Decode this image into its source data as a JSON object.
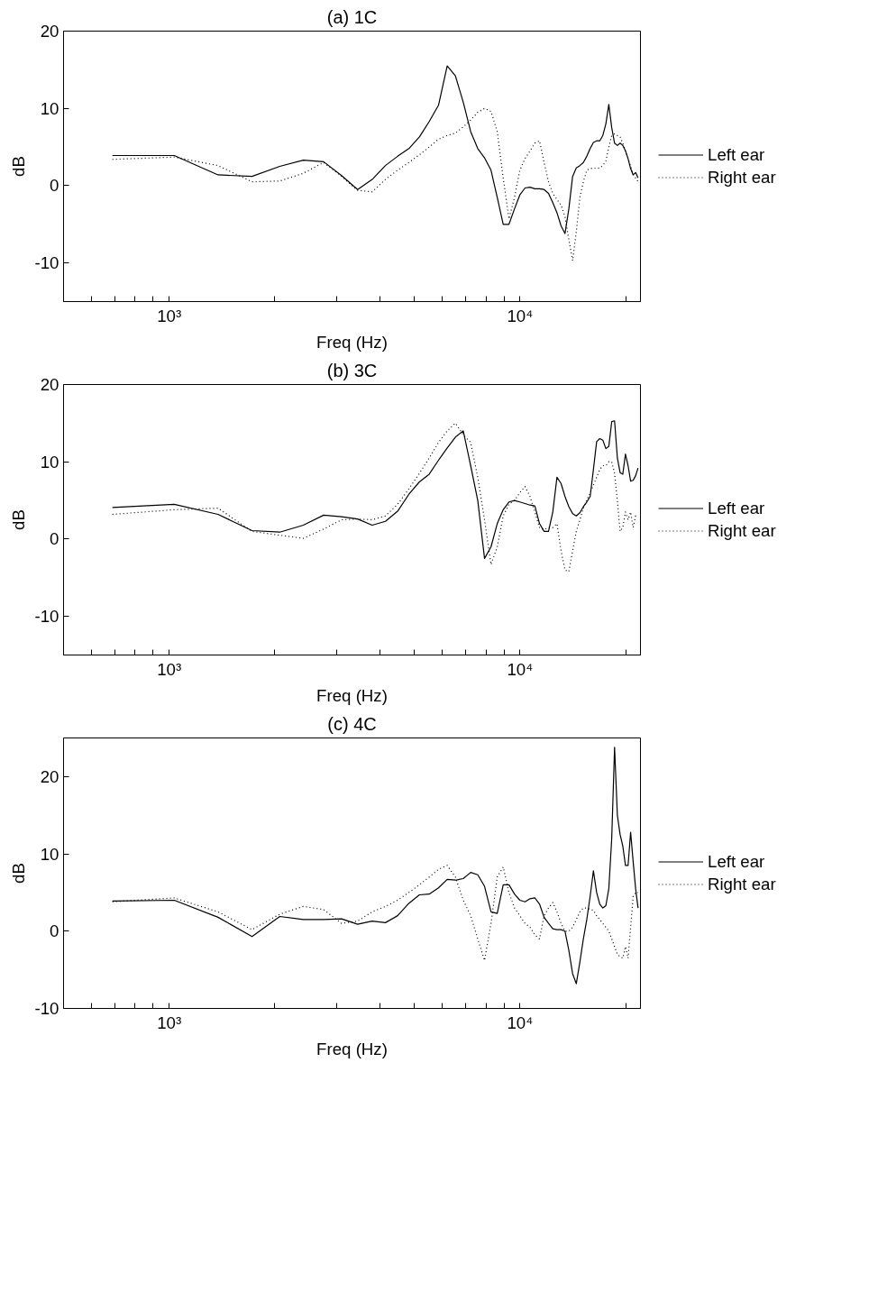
{
  "chart_data": [
    {
      "type": "line",
      "title": "(a) 1C",
      "xlabel": "Freq (Hz)",
      "ylabel": "dB",
      "log": "x",
      "legend": "right",
      "xlim": [
        500,
        22050
      ],
      "ylim": [
        -15,
        20
      ],
      "xticks": [
        {
          "value": 600,
          "label": null
        },
        {
          "value": 700,
          "label": null
        },
        {
          "value": 800,
          "label": null
        },
        {
          "value": 900,
          "label": null
        },
        {
          "value": 1000,
          "label": "10³"
        },
        {
          "value": 2000,
          "label": null
        },
        {
          "value": 3000,
          "label": null
        },
        {
          "value": 4000,
          "label": null
        },
        {
          "value": 5000,
          "label": null
        },
        {
          "value": 6000,
          "label": null
        },
        {
          "value": 7000,
          "label": null
        },
        {
          "value": 8000,
          "label": null
        },
        {
          "value": 9000,
          "label": null
        },
        {
          "value": 10000,
          "label": "10⁴"
        },
        {
          "value": 20000,
          "label": null
        }
      ],
      "yticks": [
        -10,
        0,
        10,
        20
      ],
      "x": [
        689,
        1034,
        1378,
        1723,
        2067,
        2412,
        2756,
        3101,
        3445,
        3790,
        4134,
        4479,
        4823,
        5168,
        5512,
        5857,
        6202,
        6546,
        6891,
        7235,
        7580,
        7924,
        8269,
        8613,
        8958,
        9302,
        9647,
        9991,
        10336,
        10680,
        11025,
        11370,
        11714,
        12059,
        12403,
        12748,
        13092,
        13437,
        13781,
        14126,
        14470,
        14815,
        15159,
        15504,
        15848,
        16193,
        16538,
        16882,
        17227,
        17571,
        17916,
        18260,
        18605,
        18949,
        19294,
        19638,
        19983,
        20327,
        20672,
        21016,
        21361,
        21705
      ],
      "series": [
        {
          "name": "Left ear",
          "color": "#000000",
          "line_style": "solid",
          "values": [
            3.9,
            3.9,
            1.4,
            1.2,
            2.5,
            3.3,
            3.1,
            1.3,
            -0.5,
            0.8,
            2.6,
            3.8,
            4.8,
            6.3,
            8.3,
            10.4,
            15.5,
            14.2,
            10.8,
            7.0,
            4.8,
            3.6,
            2.0,
            -1.5,
            -5.0,
            -5.0,
            -3.0,
            -1.2,
            -0.3,
            -0.2,
            -0.4,
            -0.4,
            -0.5,
            -1.0,
            -2.2,
            -3.5,
            -5.2,
            -6.2,
            -3.0,
            1.2,
            2.3,
            2.6,
            3.0,
            3.8,
            4.8,
            5.6,
            5.8,
            5.8,
            6.5,
            8.0,
            10.5,
            7.5,
            5.5,
            5.2,
            5.5,
            5.2,
            4.5,
            3.5,
            2.2,
            1.4,
            1.7,
            1.0
          ]
        },
        {
          "name": "Right ear",
          "color": "#000000",
          "line_style": "dotted",
          "values": [
            3.4,
            3.7,
            2.6,
            0.5,
            0.6,
            1.6,
            3.0,
            1.2,
            -0.6,
            -0.8,
            0.8,
            2.0,
            3.0,
            4.0,
            5.0,
            6.0,
            6.5,
            6.8,
            7.6,
            8.5,
            9.5,
            10.0,
            9.6,
            7.0,
            1.0,
            -4.3,
            -1.5,
            2.0,
            3.5,
            4.5,
            5.5,
            5.8,
            3.0,
            0.5,
            -1.0,
            -1.8,
            -2.5,
            -4.0,
            -7.0,
            -9.7,
            -6.0,
            -1.5,
            0.5,
            2.0,
            2.2,
            2.3,
            2.2,
            2.3,
            2.6,
            3.2,
            5.0,
            6.5,
            6.7,
            6.5,
            6.3,
            5.5,
            4.5,
            3.5,
            2.5,
            1.5,
            1.0,
            0.5
          ]
        }
      ]
    },
    {
      "type": "line",
      "title": "(b) 3C",
      "xlabel": "Freq (Hz)",
      "ylabel": "dB",
      "log": "x",
      "legend": "right",
      "xlim": [
        500,
        22050
      ],
      "ylim": [
        -15,
        20
      ],
      "xticks": [
        {
          "value": 600,
          "label": null
        },
        {
          "value": 700,
          "label": null
        },
        {
          "value": 800,
          "label": null
        },
        {
          "value": 900,
          "label": null
        },
        {
          "value": 1000,
          "label": "10³"
        },
        {
          "value": 2000,
          "label": null
        },
        {
          "value": 3000,
          "label": null
        },
        {
          "value": 4000,
          "label": null
        },
        {
          "value": 5000,
          "label": null
        },
        {
          "value": 6000,
          "label": null
        },
        {
          "value": 7000,
          "label": null
        },
        {
          "value": 8000,
          "label": null
        },
        {
          "value": 9000,
          "label": null
        },
        {
          "value": 10000,
          "label": "10⁴"
        },
        {
          "value": 20000,
          "label": null
        }
      ],
      "yticks": [
        -10,
        0,
        10,
        20
      ],
      "x": [
        689,
        1034,
        1378,
        1723,
        2067,
        2412,
        2756,
        3101,
        3445,
        3790,
        4134,
        4479,
        4823,
        5168,
        5512,
        5857,
        6202,
        6546,
        6891,
        7235,
        7580,
        7924,
        8269,
        8613,
        8958,
        9302,
        9647,
        9991,
        10336,
        10680,
        11025,
        11370,
        11714,
        12059,
        12403,
        12748,
        13092,
        13437,
        13781,
        14126,
        14470,
        14815,
        15159,
        15504,
        15848,
        16193,
        16538,
        16882,
        17227,
        17571,
        17916,
        18260,
        18605,
        18949,
        19294,
        19638,
        19983,
        20327,
        20672,
        21016,
        21361,
        21705
      ],
      "series": [
        {
          "name": "Left ear",
          "color": "#000000",
          "line_style": "solid",
          "values": [
            4.1,
            4.5,
            3.2,
            1.1,
            0.9,
            1.8,
            3.1,
            2.9,
            2.6,
            1.8,
            2.3,
            3.6,
            5.8,
            7.4,
            8.4,
            10.2,
            11.8,
            13.2,
            14.0,
            9.5,
            5.0,
            -2.5,
            -1.0,
            2.0,
            3.8,
            4.8,
            5.0,
            4.8,
            4.6,
            4.4,
            4.3,
            2.0,
            1.0,
            1.0,
            3.5,
            8.0,
            7.2,
            5.5,
            4.2,
            3.3,
            3.0,
            3.4,
            4.2,
            4.8,
            5.5,
            9.0,
            12.6,
            13.0,
            12.8,
            11.7,
            12.0,
            15.2,
            15.3,
            10.5,
            8.6,
            8.4,
            11.0,
            9.5,
            7.5,
            7.6,
            8.2,
            9.2
          ]
        },
        {
          "name": "Right ear",
          "color": "#000000",
          "line_style": "dotted",
          "values": [
            3.2,
            3.8,
            4.0,
            1.0,
            0.5,
            0.1,
            1.3,
            2.5,
            2.6,
            2.5,
            3.0,
            4.5,
            6.5,
            8.5,
            10.5,
            12.5,
            14.0,
            15.0,
            13.5,
            12.5,
            8.0,
            2.5,
            -3.3,
            -1.0,
            3.0,
            4.5,
            5.0,
            6.0,
            6.8,
            5.5,
            3.5,
            1.5,
            1.2,
            1.5,
            1.5,
            2.0,
            -1.5,
            -4.0,
            -4.2,
            -1.5,
            1.0,
            2.5,
            4.0,
            5.0,
            6.0,
            7.0,
            8.0,
            9.0,
            9.5,
            9.5,
            10.0,
            10.0,
            8.5,
            5.0,
            1.0,
            1.5,
            3.5,
            2.5,
            3.5,
            1.5,
            3.0,
            3.0
          ]
        }
      ]
    },
    {
      "type": "line",
      "title": "(c) 4C",
      "xlabel": "Freq (Hz)",
      "ylabel": "dB",
      "log": "x",
      "legend": "right",
      "xlim": [
        500,
        22050
      ],
      "ylim": [
        -10,
        25
      ],
      "xticks": [
        {
          "value": 600,
          "label": null
        },
        {
          "value": 700,
          "label": null
        },
        {
          "value": 800,
          "label": null
        },
        {
          "value": 900,
          "label": null
        },
        {
          "value": 1000,
          "label": "10³"
        },
        {
          "value": 2000,
          "label": null
        },
        {
          "value": 3000,
          "label": null
        },
        {
          "value": 4000,
          "label": null
        },
        {
          "value": 5000,
          "label": null
        },
        {
          "value": 6000,
          "label": null
        },
        {
          "value": 7000,
          "label": null
        },
        {
          "value": 8000,
          "label": null
        },
        {
          "value": 9000,
          "label": null
        },
        {
          "value": 10000,
          "label": "10⁴"
        },
        {
          "value": 20000,
          "label": null
        }
      ],
      "yticks": [
        -10,
        0,
        10,
        20
      ],
      "x": [
        689,
        1034,
        1378,
        1723,
        2067,
        2412,
        2756,
        3101,
        3445,
        3790,
        4134,
        4479,
        4823,
        5168,
        5512,
        5857,
        6202,
        6546,
        6891,
        7235,
        7580,
        7924,
        8269,
        8613,
        8958,
        9302,
        9647,
        9991,
        10336,
        10680,
        11025,
        11370,
        11714,
        12059,
        12403,
        12748,
        13092,
        13437,
        13781,
        14126,
        14470,
        14815,
        15159,
        15504,
        15848,
        16193,
        16538,
        16882,
        17227,
        17571,
        17916,
        18260,
        18605,
        18949,
        19294,
        19638,
        19983,
        20327,
        20672,
        21016,
        21361,
        21705
      ],
      "series": [
        {
          "name": "Left ear",
          "color": "#000000",
          "line_style": "solid",
          "values": [
            3.9,
            4.0,
            1.8,
            -0.7,
            1.9,
            1.5,
            1.5,
            1.6,
            0.9,
            1.3,
            1.1,
            2.0,
            3.6,
            4.7,
            4.8,
            5.6,
            6.7,
            6.6,
            6.8,
            7.6,
            7.3,
            5.8,
            2.5,
            2.3,
            6.0,
            6.0,
            4.8,
            4.0,
            3.8,
            4.2,
            4.3,
            3.5,
            1.8,
            1.0,
            0.3,
            0.2,
            0.2,
            0.0,
            -2.5,
            -5.5,
            -6.8,
            -4.0,
            -1.0,
            1.5,
            4.5,
            7.8,
            5.0,
            3.5,
            3.0,
            3.3,
            5.5,
            12.0,
            23.8,
            15.0,
            12.5,
            11.0,
            8.5,
            8.5,
            12.8,
            9.0,
            5.5,
            3.0
          ]
        },
        {
          "name": "Right ear",
          "color": "#000000",
          "line_style": "dotted",
          "values": [
            3.8,
            4.3,
            2.5,
            0.2,
            2.2,
            3.2,
            2.8,
            1.0,
            1.3,
            2.5,
            3.2,
            4.0,
            5.0,
            6.0,
            7.0,
            8.0,
            8.5,
            7.0,
            4.0,
            2.0,
            -1.0,
            -3.8,
            1.0,
            7.0,
            8.3,
            5.0,
            3.0,
            2.0,
            1.0,
            0.5,
            -0.5,
            -1.0,
            2.0,
            3.0,
            3.7,
            2.5,
            1.0,
            0.0,
            0.0,
            0.5,
            1.5,
            2.5,
            3.0,
            3.0,
            2.8,
            2.7,
            2.0,
            1.5,
            1.0,
            0.5,
            0.0,
            -1.0,
            -2.0,
            -3.0,
            -3.3,
            -3.5,
            -2.0,
            -3.5,
            0.5,
            4.5,
            5.0,
            5.0
          ]
        }
      ]
    }
  ]
}
